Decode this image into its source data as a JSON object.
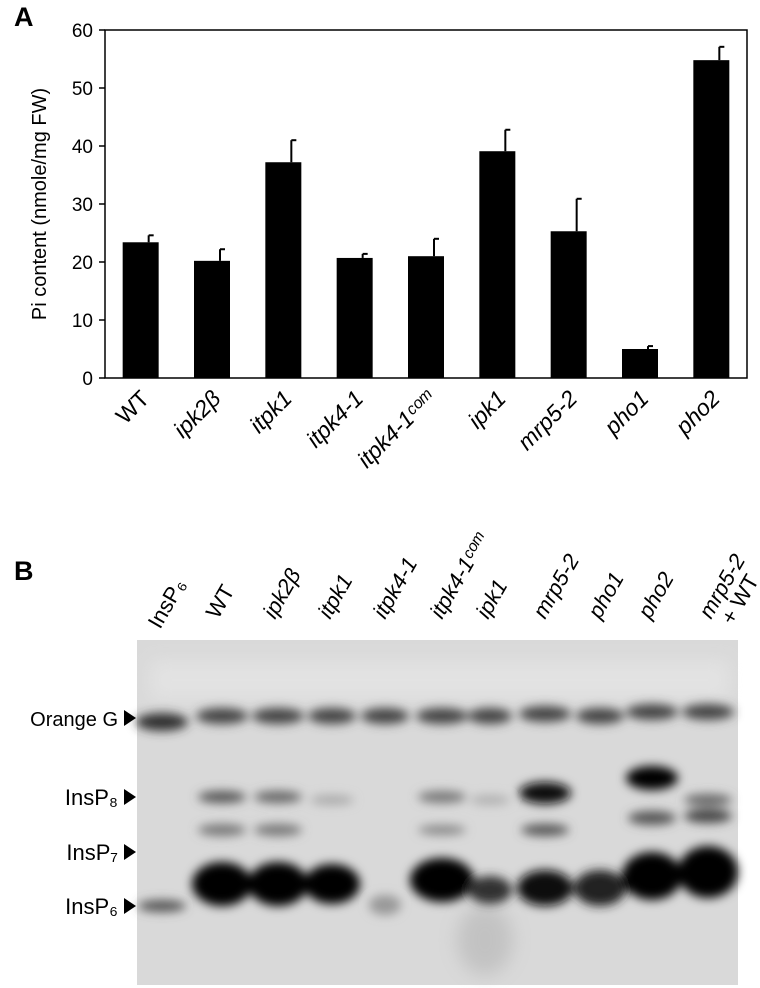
{
  "panel_a_label": "A",
  "panel_b_label": "B",
  "chart_data": {
    "type": "bar",
    "ylabel": "Pi content (nmole/mg FW)",
    "categories": [
      "WT",
      "ipk2β",
      "itpk1",
      "itpk4-1",
      "itpk4-1ᶜᵒᵐ",
      "ipk1",
      "mrp5-2",
      "pho1",
      "pho2"
    ],
    "values": [
      23.4,
      20.2,
      37.2,
      20.7,
      21,
      39.1,
      25.3,
      5,
      54.8
    ],
    "errors": [
      1.2,
      2,
      3.8,
      0.7,
      3,
      3.7,
      5.6,
      0.5,
      2.3
    ],
    "color": "#000000",
    "ylim": [
      0,
      60
    ],
    "yticks": [
      0,
      10,
      20,
      30,
      40,
      50,
      60
    ],
    "grid": false
  },
  "gel": {
    "lanes": [
      {
        "label": "InsP₆"
      },
      {
        "label": "WT"
      },
      {
        "label": "ipk2β"
      },
      {
        "label": "itpk1"
      },
      {
        "label": "itpk4-1"
      },
      {
        "label": "itpk4-1ᶜᵒᵐ"
      },
      {
        "label": "ipk1"
      },
      {
        "label": "mrp5-2"
      },
      {
        "label": "pho1"
      },
      {
        "label": "pho2"
      },
      {
        "label": "mrp5-2",
        "label_line2": "+ WT"
      }
    ],
    "markers": [
      "Orange G",
      "InsP₈",
      "InsP₇",
      "InsP₆"
    ]
  }
}
